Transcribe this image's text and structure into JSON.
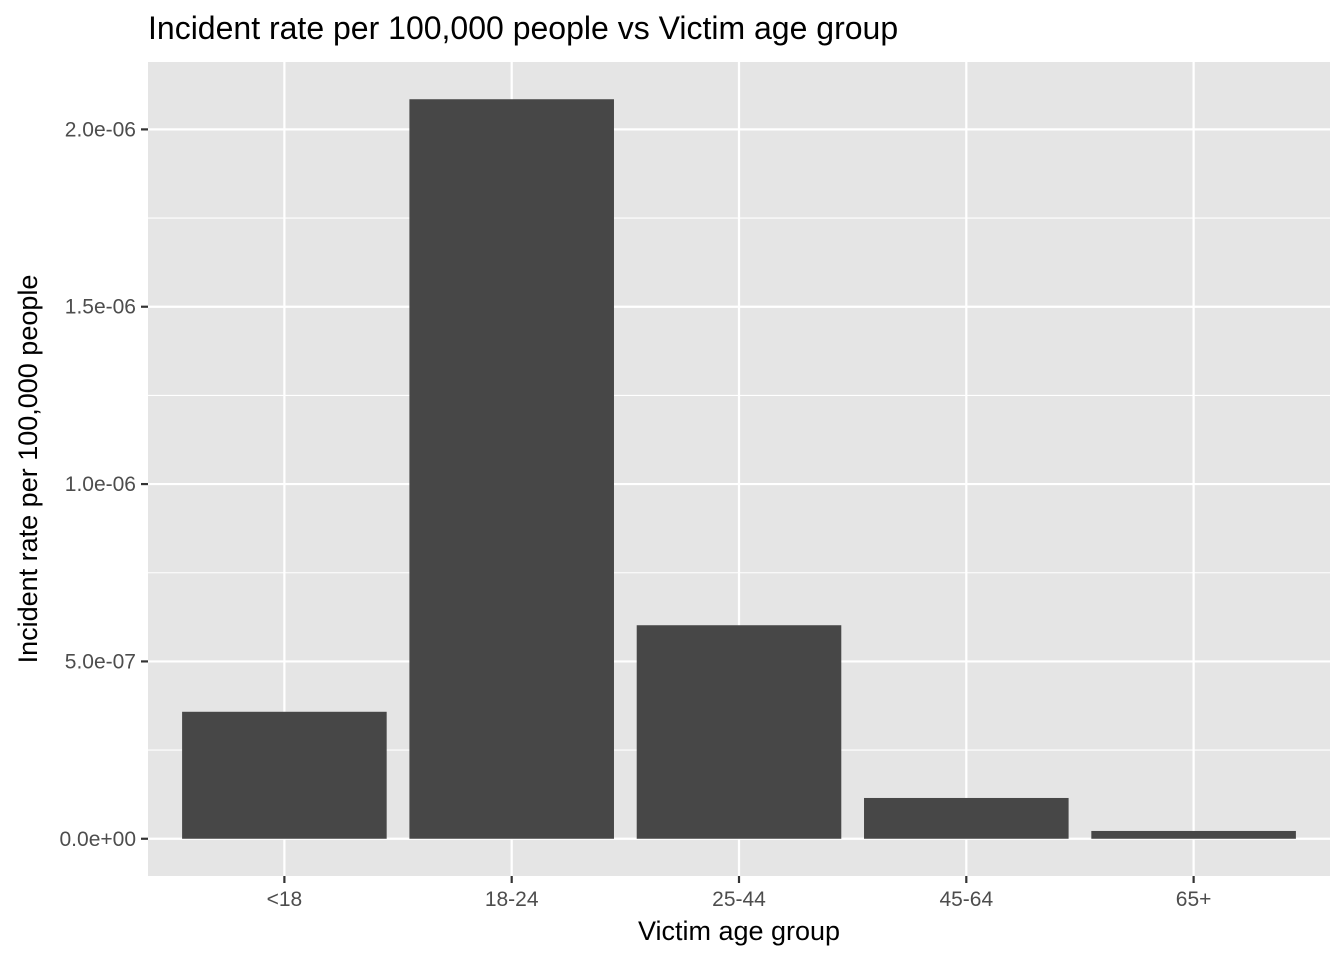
{
  "chart_data": {
    "type": "bar",
    "title": "Incident rate per 100,000 people vs Victim age group",
    "xlabel": "Victim age group",
    "ylabel": "Incident rate  per 100,000 people",
    "categories": [
      "<18",
      "18-24",
      "25-44",
      "45-64",
      "65+"
    ],
    "values": [
      3.58e-07,
      2.085e-06,
      6.02e-07,
      1.15e-07,
      2.2e-08
    ],
    "ylim": [
      -1.05e-07,
      2.19e-06
    ],
    "yticks": [
      0,
      5e-07,
      1e-06,
      1.5e-06,
      2e-06
    ],
    "ytick_labels": [
      "0.0e+00",
      "5.0e-07",
      "1.0e-06",
      "1.5e-06",
      "2.0e-06"
    ],
    "grid": true,
    "legend": "none",
    "colors": {
      "bar": "#474747",
      "panel_background": "#e5e5e5",
      "grid_line": "#ffffff",
      "tick_label": "#4d4d4d",
      "axis_title": "#000000"
    }
  }
}
